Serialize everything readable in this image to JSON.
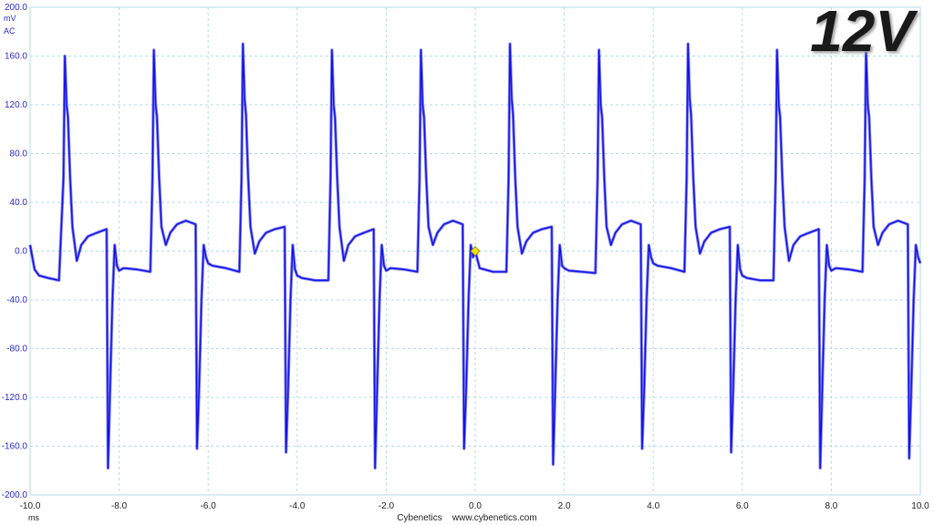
{
  "overlay_title": "12V",
  "y_unit": "mV",
  "coupling": "AC",
  "x_unit": "ms",
  "footer": {
    "brand": "Cybenetics",
    "url": "www.cybenetics.com"
  },
  "colors": {
    "trace": "#1010e6",
    "grid": "#b6dbe6",
    "axis_labels": "#2a2acc",
    "marker": "#f0e000"
  },
  "chart_data": {
    "type": "line",
    "title": "",
    "xlabel": "ms",
    "ylabel": "mV",
    "xlim": [
      -10.0,
      10.0
    ],
    "ylim": [
      -200.0,
      200.0
    ],
    "grid": true,
    "x_ticks": [
      "-10.0",
      "-8.0",
      "-6.0",
      "-4.0",
      "-2.0",
      "0.0",
      "2.0",
      "4.0",
      "6.0",
      "8.0",
      "10.0"
    ],
    "y_ticks": [
      "200.0",
      "160.0",
      "120.0",
      "80.0",
      "40.0",
      "0.0",
      "-40.0",
      "-80.0",
      "-120.0",
      "-160.0",
      "-200.0"
    ],
    "trigger_marker": {
      "x": 0.0,
      "y": 0.0
    },
    "period_ms": 2.0,
    "series": [
      {
        "x": [
          -10.0,
          -9.9,
          -9.8,
          -9.6,
          -9.35,
          -9.25,
          -9.22,
          -9.18,
          -9.15,
          -9.1,
          -9.05,
          -8.95,
          -8.85,
          -8.7,
          -8.5,
          -8.28,
          -8.25,
          -8.2,
          -8.15,
          -8.1,
          -8.05,
          -8.0,
          -7.9,
          -7.6,
          -7.3,
          -7.25,
          -7.22,
          -7.18,
          -7.15,
          -7.1,
          -7.05,
          -6.95,
          -6.85,
          -6.7,
          -6.5,
          -6.28,
          -6.25,
          -6.2,
          -6.15,
          -6.1,
          -6.05,
          -6.0,
          -5.9,
          -5.6,
          -5.3,
          -5.25,
          -5.22,
          -5.18,
          -5.15,
          -5.1,
          -5.05,
          -4.95,
          -4.85,
          -4.7,
          -4.5,
          -4.28,
          -4.25,
          -4.2,
          -4.15,
          -4.1,
          -4.05,
          -4.0,
          -3.9,
          -3.6,
          -3.3,
          -3.25,
          -3.22,
          -3.18,
          -3.15,
          -3.1,
          -3.05,
          -2.95,
          -2.85,
          -2.7,
          -2.5,
          -2.28,
          -2.25,
          -2.2,
          -2.15,
          -2.1,
          -2.05,
          -2.0,
          -1.9,
          -1.6,
          -1.3,
          -1.25,
          -1.22,
          -1.18,
          -1.15,
          -1.1,
          -1.05,
          -0.95,
          -0.85,
          -0.7,
          -0.5,
          -0.28,
          -0.25,
          -0.2,
          -0.15,
          -0.1,
          -0.05,
          0.0,
          0.1,
          0.4,
          0.7,
          0.75,
          0.78,
          0.82,
          0.85,
          0.9,
          0.95,
          1.05,
          1.15,
          1.3,
          1.5,
          1.72,
          1.75,
          1.8,
          1.85,
          1.9,
          1.95,
          2.0,
          2.1,
          2.4,
          2.7,
          2.75,
          2.78,
          2.82,
          2.85,
          2.9,
          2.95,
          3.05,
          3.15,
          3.3,
          3.5,
          3.72,
          3.75,
          3.8,
          3.85,
          3.9,
          3.95,
          4.0,
          4.1,
          4.4,
          4.7,
          4.75,
          4.78,
          4.82,
          4.85,
          4.9,
          4.95,
          5.05,
          5.15,
          5.3,
          5.5,
          5.72,
          5.75,
          5.8,
          5.85,
          5.9,
          5.95,
          6.0,
          6.1,
          6.4,
          6.7,
          6.75,
          6.78,
          6.82,
          6.85,
          6.9,
          6.95,
          7.05,
          7.15,
          7.3,
          7.5,
          7.72,
          7.75,
          7.8,
          7.85,
          7.9,
          7.95,
          8.0,
          8.1,
          8.4,
          8.7,
          8.75,
          8.78,
          8.82,
          8.85,
          8.9,
          8.95,
          9.05,
          9.15,
          9.3,
          9.5,
          9.72,
          9.75,
          9.8,
          9.85,
          9.9,
          9.95,
          10.0
        ],
        "y": [
          5,
          -15,
          -20,
          -22,
          -24,
          60,
          160,
          120,
          110,
          60,
          20,
          -8,
          5,
          12,
          15,
          18,
          -178,
          -110,
          -40,
          5,
          -12,
          -16,
          -14,
          -15,
          -17,
          60,
          165,
          120,
          110,
          60,
          20,
          5,
          15,
          22,
          25,
          22,
          -162,
          -110,
          -40,
          5,
          -5,
          -10,
          -12,
          -14,
          -17,
          60,
          170,
          125,
          112,
          60,
          20,
          -2,
          8,
          15,
          18,
          20,
          -165,
          -110,
          -40,
          5,
          -15,
          -20,
          -22,
          -24,
          -24,
          60,
          165,
          120,
          110,
          60,
          20,
          -8,
          5,
          12,
          15,
          18,
          -178,
          -110,
          -40,
          5,
          -12,
          -16,
          -14,
          -15,
          -17,
          60,
          165,
          120,
          110,
          60,
          20,
          5,
          15,
          22,
          25,
          22,
          -162,
          -110,
          -40,
          5,
          -5,
          0,
          -14,
          -17,
          -17,
          60,
          170,
          125,
          112,
          60,
          20,
          -2,
          8,
          15,
          18,
          20,
          -175,
          -110,
          -40,
          5,
          -12,
          -14,
          -16,
          -17,
          -18,
          60,
          165,
          120,
          110,
          60,
          20,
          5,
          15,
          22,
          25,
          22,
          -162,
          -110,
          -40,
          5,
          -5,
          -10,
          -12,
          -14,
          -17,
          60,
          170,
          125,
          112,
          60,
          20,
          -2,
          8,
          15,
          18,
          20,
          -165,
          -110,
          -40,
          5,
          -15,
          -20,
          -22,
          -24,
          -24,
          60,
          165,
          120,
          110,
          60,
          20,
          -8,
          5,
          12,
          15,
          18,
          -178,
          -110,
          -40,
          5,
          -12,
          -16,
          -14,
          -15,
          -17,
          60,
          165,
          120,
          110,
          60,
          20,
          5,
          15,
          22,
          25,
          22,
          -170,
          -110,
          -40,
          5,
          -5,
          -10
        ]
      }
    ]
  }
}
